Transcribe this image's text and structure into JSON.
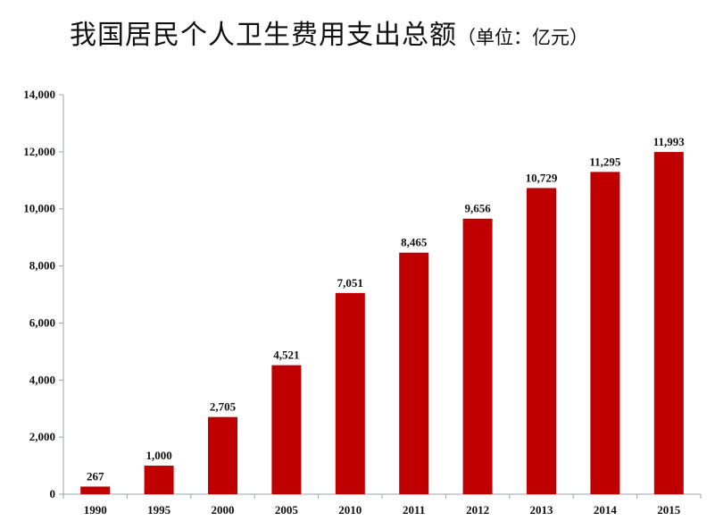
{
  "title": {
    "main": "我国居民个人卫生费用支出总额",
    "unit": "（单位：亿元）"
  },
  "chart_data": {
    "type": "bar",
    "title": "我国居民个人卫生费用支出总额（单位：亿元）",
    "xlabel": "",
    "ylabel": "",
    "categories": [
      "1990",
      "1995",
      "2000",
      "2005",
      "2010",
      "2011",
      "2012",
      "2013",
      "2014",
      "2015"
    ],
    "values": [
      267,
      1000,
      2705,
      4521,
      7051,
      8465,
      9656,
      10729,
      11295,
      11993
    ],
    "value_labels": [
      "267",
      "1,000",
      "2,705",
      "4,521",
      "7,051",
      "8,465",
      "9,656",
      "10,729",
      "11,295",
      "11,993"
    ],
    "ylim": [
      0,
      14000
    ],
    "yticks": [
      0,
      2000,
      4000,
      6000,
      8000,
      10000,
      12000,
      14000
    ],
    "ytick_labels": [
      "0",
      "2,000",
      "4,000",
      "6,000",
      "8,000",
      "10,000",
      "12,000",
      "14,000"
    ],
    "grid": false,
    "legend": "none",
    "bar_color": "#c00000",
    "axis_color": "#9aa3ad"
  }
}
